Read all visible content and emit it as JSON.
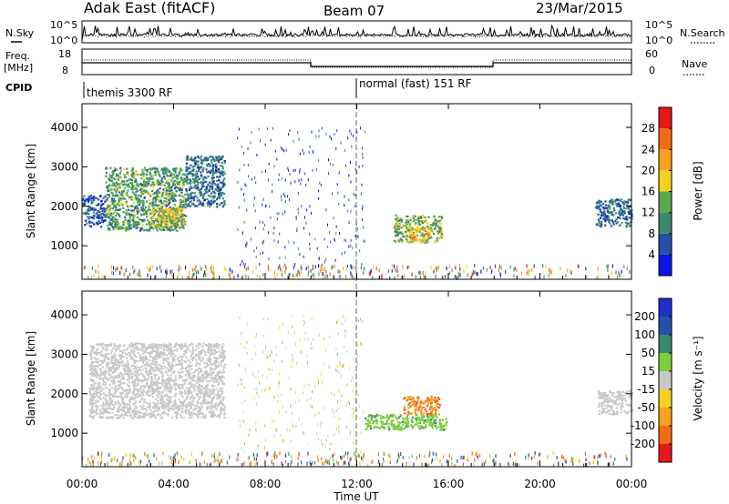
{
  "header": {
    "station": "Adak East (fitACF)",
    "beam": "Beam 07",
    "date": "23/Mar/2015"
  },
  "strips": {
    "nsky_label": "N.Sky",
    "nsearch_label": "N.Search",
    "noise_ticks": [
      "10^5",
      "10^0"
    ],
    "freq_label": "Freq.",
    "freq_unit": "[MHz]",
    "freq_ticks": [
      "18",
      "8"
    ],
    "nave_label": "Nave",
    "nave_ticks": [
      "60",
      "0"
    ],
    "cpid_label": "CPID",
    "cpid_segments": [
      {
        "text": "themis 3300 RF",
        "start_hour": 0
      },
      {
        "text": "normal (fast) 151 RF",
        "start_hour": 12
      }
    ]
  },
  "x_axis": {
    "title": "Time UT",
    "ticks": [
      "00:00",
      "04:00",
      "08:00",
      "12:00",
      "16:00",
      "20:00",
      "00:00"
    ]
  },
  "colors": {
    "power_scale": [
      "#0a14e6",
      "#2850a8",
      "#3a8a70",
      "#5aa84c",
      "#f4d020",
      "#f7a020",
      "#f26a18",
      "#e81818"
    ],
    "velocity_scale": [
      "#e81818",
      "#f26a18",
      "#f7a020",
      "#f4d020",
      "#c8c8c8",
      "#7ccd3a",
      "#3a8a70",
      "#2850a8",
      "#2030c8"
    ],
    "ground_scatter": "#c8c8c8"
  },
  "chart_data": [
    {
      "type": "heatmap",
      "title": "",
      "xlabel": "Time UT",
      "ylabel": "Slant Range [km]",
      "xlim": [
        0,
        24
      ],
      "ylim": [
        150,
        4600
      ],
      "yticks": [
        1000,
        2000,
        3000,
        4000
      ],
      "colorbar": {
        "label": "Power [dB]",
        "ticks": [
          "28",
          "24",
          "20",
          "16",
          "12",
          "8",
          "4"
        ],
        "range": [
          0,
          30
        ]
      },
      "regions": [
        {
          "name": "",
          "hours": [
            0.0,
            1.0
          ],
          "range_km": [
            1500,
            2300
          ],
          "value": 6
        },
        {
          "name": "",
          "hours": [
            1.0,
            4.5
          ],
          "range_km": [
            1400,
            3000
          ],
          "value": 12
        },
        {
          "name": "",
          "hours": [
            3.0,
            4.4
          ],
          "range_km": [
            1500,
            2000
          ],
          "value": 18
        },
        {
          "name": "",
          "hours": [
            4.5,
            6.2
          ],
          "range_km": [
            2000,
            3300
          ],
          "value": 8
        },
        {
          "name": "",
          "hours": [
            13.6,
            15.7
          ],
          "range_km": [
            1100,
            1800
          ],
          "value": 14
        },
        {
          "name": "",
          "hours": [
            14.3,
            15.2
          ],
          "range_km": [
            1150,
            1450
          ],
          "value": 20
        },
        {
          "name": "",
          "hours": [
            22.4,
            24.0
          ],
          "range_km": [
            1500,
            2200
          ],
          "value": 8
        }
      ]
    },
    {
      "type": "heatmap",
      "title": "",
      "xlabel": "Time UT",
      "ylabel": "Slant Range [km]",
      "xlim": [
        0,
        24
      ],
      "ylim": [
        150,
        4600
      ],
      "yticks": [
        1000,
        2000,
        3000,
        4000
      ],
      "colorbar": {
        "label": "Velocity [m s⁻¹]",
        "ticks": [
          "200",
          "100",
          "50",
          "15",
          "-15",
          "-50",
          "-100",
          "-200"
        ],
        "range": [
          -250,
          250
        ]
      },
      "regions": [
        {
          "name": "",
          "hours": [
            0.3,
            6.2
          ],
          "range_km": [
            1400,
            3300
          ],
          "value": 0
        },
        {
          "name": "",
          "hours": [
            12.3,
            15.9
          ],
          "range_km": [
            1100,
            1500
          ],
          "value": 40
        },
        {
          "name": "",
          "hours": [
            14.0,
            15.6
          ],
          "range_km": [
            1500,
            1950
          ],
          "value": -100
        },
        {
          "name": "",
          "hours": [
            22.5,
            24.0
          ],
          "range_km": [
            1500,
            2100
          ],
          "value": 0
        }
      ]
    }
  ]
}
